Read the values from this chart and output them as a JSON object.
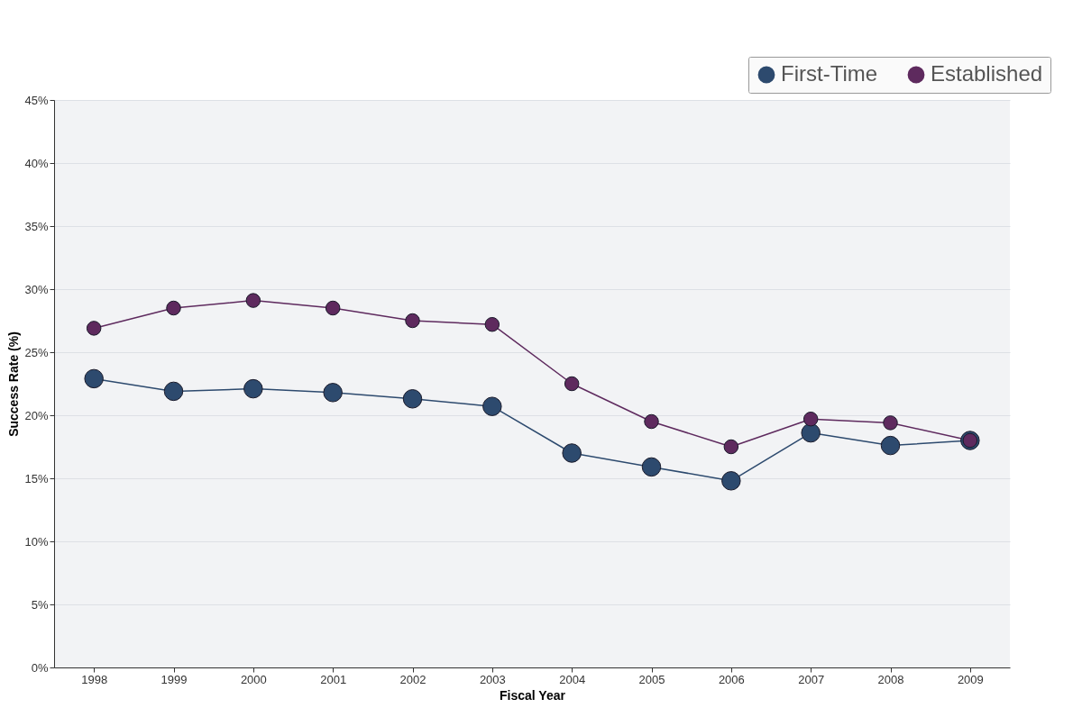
{
  "chart_data": {
    "type": "line",
    "xlabel": "Fiscal Year",
    "ylabel": "Success Rate  (%)",
    "categories": [
      "1998",
      "1999",
      "2000",
      "2001",
      "2002",
      "2003",
      "2004",
      "2005",
      "2006",
      "2007",
      "2008",
      "2009"
    ],
    "series": [
      {
        "name": "First-Time",
        "color": "#2d4a6e",
        "values": [
          22.9,
          21.9,
          22.1,
          21.8,
          21.3,
          20.7,
          17.0,
          15.9,
          14.8,
          18.6,
          17.6,
          18.0
        ]
      },
      {
        "name": "Established",
        "color": "#5e2a5e",
        "values": [
          26.9,
          28.5,
          29.1,
          28.5,
          27.5,
          27.2,
          22.5,
          19.5,
          17.5,
          19.7,
          19.4,
          18.0
        ]
      }
    ],
    "ylim": [
      0,
      45
    ],
    "yticks": [
      {
        "value": 0,
        "label": "0%"
      },
      {
        "value": 5,
        "label": "5%"
      },
      {
        "value": 10,
        "label": "10%"
      },
      {
        "value": 15,
        "label": "15%"
      },
      {
        "value": 20,
        "label": "20%"
      },
      {
        "value": 25,
        "label": "25%"
      },
      {
        "value": 30,
        "label": "30%"
      },
      {
        "value": 35,
        "label": "35%"
      },
      {
        "value": 40,
        "label": "40%"
      },
      {
        "value": 45,
        "label": "45%"
      }
    ],
    "grid": "y",
    "legend": "top right",
    "marker": "circle",
    "line_style": "solid"
  }
}
